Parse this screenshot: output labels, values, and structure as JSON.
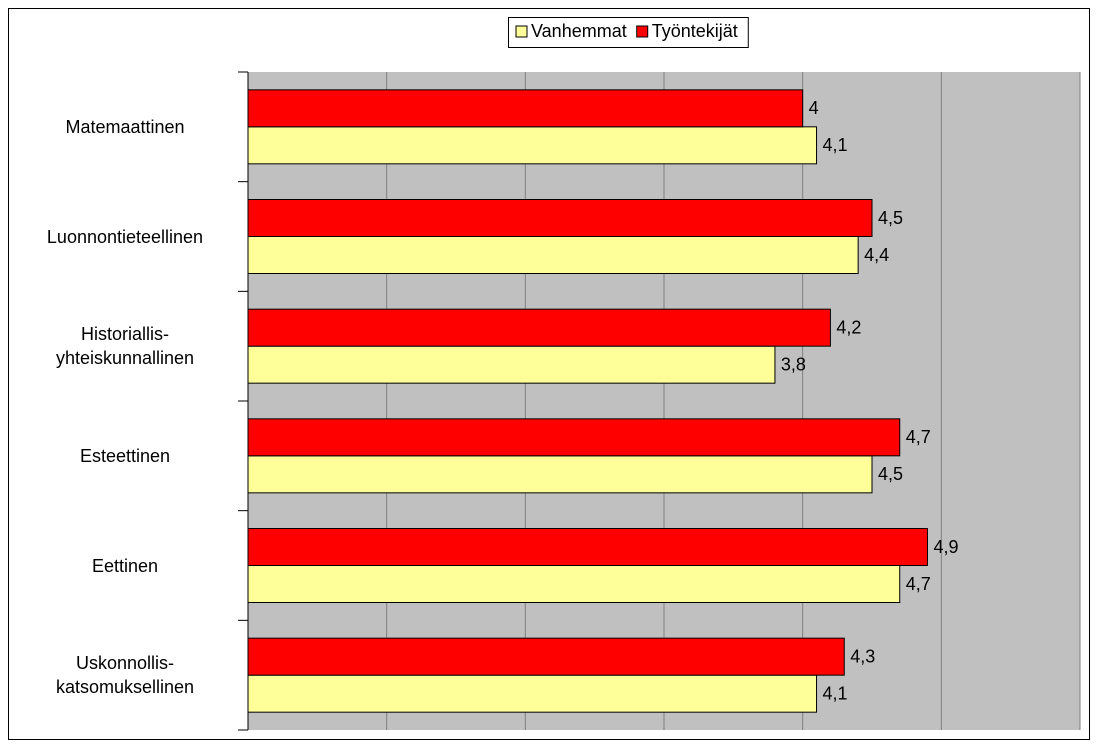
{
  "chart_data": {
    "type": "barh",
    "categories": [
      "Matemaattinen",
      "Luonnontieteellinen",
      "Historiallis-\nyhteiskunnallinen",
      "Esteettinen",
      "Eettinen",
      "Uskonnollis-\nkatsomuksellinen"
    ],
    "series": [
      {
        "name": "Vanhemmat",
        "color": "#ffff99",
        "values": [
          4.1,
          4.4,
          3.8,
          4.5,
          4.7,
          4.1
        ],
        "value_labels": [
          "4,1",
          "4,4",
          "3,8",
          "4,5",
          "4,7",
          "4,1"
        ]
      },
      {
        "name": "Työntekijät",
        "color": "#ff0000",
        "values": [
          4,
          4.5,
          4.2,
          4.7,
          4.9,
          4.3
        ],
        "value_labels": [
          "4",
          "4,5",
          "4,2",
          "4,7",
          "4,9",
          "4,3"
        ]
      }
    ],
    "xlim": [
      0,
      6
    ],
    "xticks": [
      0,
      1,
      2,
      3,
      4,
      5,
      6
    ],
    "grid": true,
    "legend": "top"
  }
}
